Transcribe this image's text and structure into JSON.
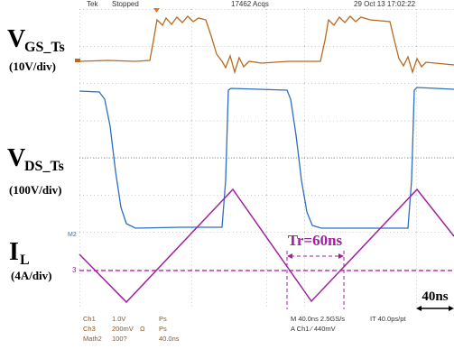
{
  "header": {
    "brand": "Tek",
    "status": "Stopped",
    "acquisitions": "17462 Acqs",
    "timestamp": "29 Oct 13 17:02:22"
  },
  "labels": {
    "vgs": {
      "main": "V",
      "sub": "GS_Ts",
      "scale": "(10V/div)"
    },
    "vds": {
      "main": "V",
      "sub": "DS_Ts",
      "scale": "(100V/div)"
    },
    "il": {
      "main": "I",
      "sub": "L",
      "scale": "(4A/div)"
    }
  },
  "annotations": {
    "rise_time": "Tr=60ns",
    "time_scale": "40ns",
    "math_marker": "M2",
    "ch3_marker": "3"
  },
  "footer": {
    "ch1": {
      "name": "Ch1",
      "scale": "1.0V",
      "unit": "Ps"
    },
    "ch3": {
      "name": "Ch3",
      "scale": "200mV",
      "impedance": "Ω",
      "unit": "Ps"
    },
    "math2": {
      "name": "Math2",
      "scale": "100?",
      "time": "40.0ns"
    },
    "horizontal": "M 40.0ns 2.5GS/s",
    "interval": "IT 40.0ps/pt",
    "trigger": "A Ch1 ∕ 440mV"
  }
}
